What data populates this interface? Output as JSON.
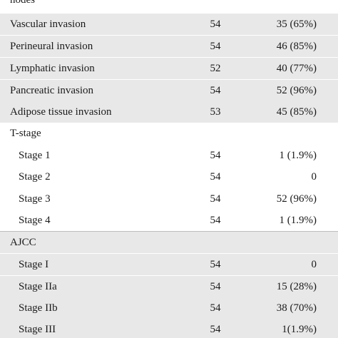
{
  "table": {
    "rows": [
      {
        "label": "nodes",
        "n": "",
        "value": ""
      },
      {
        "label": "Vascular invasion",
        "n": "54",
        "value": "35 (65%)"
      },
      {
        "label": "Perineural invasion",
        "n": "54",
        "value": "46 (85%)"
      },
      {
        "label": "Lymphatic invasion",
        "n": "52",
        "value": "40 (77%)"
      },
      {
        "label": "Pancreatic invasion",
        "n": "54",
        "value": "52 (96%)"
      },
      {
        "label": "Adipose tissue invasion",
        "n": "53",
        "value": "45 (85%)"
      },
      {
        "label": "T-stage",
        "n": "",
        "value": ""
      },
      {
        "label": "Stage 1",
        "n": "54",
        "value": "1 (1.9%)"
      },
      {
        "label": "Stage 2",
        "n": "54",
        "value": "0"
      },
      {
        "label": "Stage 3",
        "n": "54",
        "value": "52 (96%)"
      },
      {
        "label": "Stage 4",
        "n": "54",
        "value": "1 (1.9%)"
      },
      {
        "label": "AJCC",
        "n": "",
        "value": ""
      },
      {
        "label": "Stage I",
        "n": "54",
        "value": "0"
      },
      {
        "label": "Stage IIa",
        "n": "54",
        "value": "15 (28%)"
      },
      {
        "label": "Stage IIb",
        "n": "54",
        "value": "38 (70%)"
      },
      {
        "label": "Stage III",
        "n": "54",
        "value": "1(1.9%)"
      }
    ]
  }
}
